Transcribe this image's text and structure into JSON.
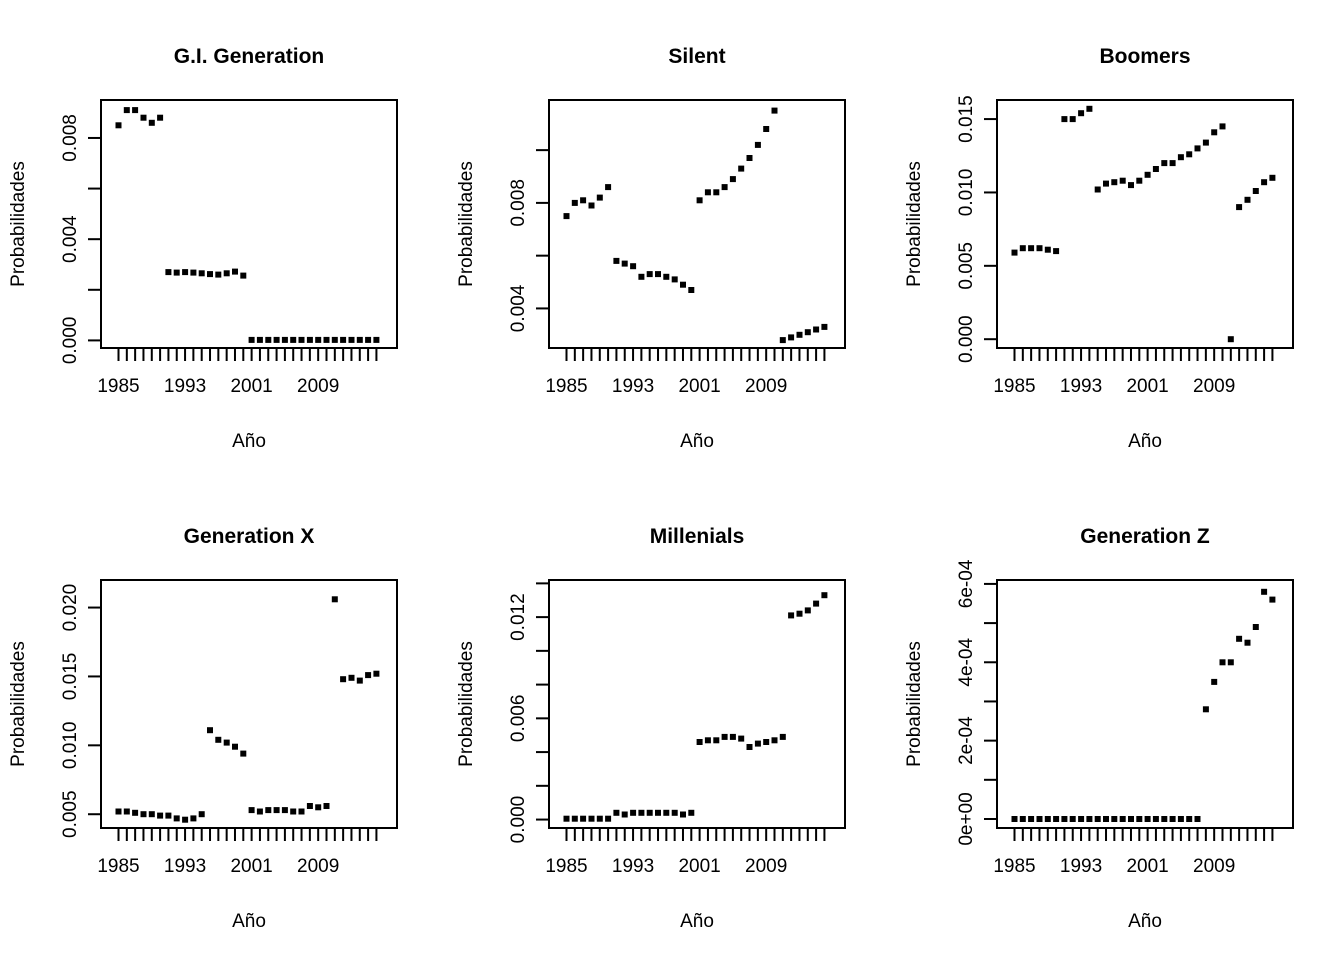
{
  "figure": {
    "description": "2x3 grid of R-style scatter plots of death/event probabilities by year for six generational cohorts",
    "background": "#ffffff",
    "point_color": "#000000",
    "axis_color": "#000000"
  },
  "chart_data": {
    "type": "scatter",
    "grid": "2 rows x 3 columns",
    "point_style": "filled black squares (pch=15)",
    "x": [
      1985,
      1986,
      1987,
      1988,
      1989,
      1990,
      1991,
      1992,
      1993,
      1994,
      1995,
      1996,
      1997,
      1998,
      1999,
      2000,
      2001,
      2002,
      2003,
      2004,
      2005,
      2006,
      2007,
      2008,
      2009,
      2010,
      2011,
      2012,
      2013,
      2014,
      2015,
      2016
    ],
    "xlabel": "Año",
    "ylabel": "Probabilidades",
    "x_tick_labels": [
      "1985",
      "1993",
      "2001",
      "2009"
    ],
    "x_tick_label_indices": [
      0,
      8,
      16,
      24
    ],
    "panels": [
      {
        "title": "G.I. Generation",
        "title_color": "#26B8B0",
        "ylim": [
          -0.0003,
          0.0095
        ],
        "yticks": [
          {
            "v": 0.0,
            "label": "0.000"
          },
          {
            "v": 0.002
          },
          {
            "v": 0.004,
            "label": "0.004"
          },
          {
            "v": 0.006
          },
          {
            "v": 0.008,
            "label": "0.008"
          }
        ],
        "values": [
          0.0085,
          0.0091,
          0.0091,
          0.0088,
          0.0086,
          0.0088,
          0.0027,
          0.00268,
          0.0027,
          0.00268,
          0.00265,
          0.00262,
          0.0026,
          0.00265,
          0.00272,
          0.00256,
          2e-05,
          2e-05,
          2e-05,
          2e-05,
          2e-05,
          2e-05,
          2e-05,
          2e-05,
          2e-05,
          2e-05,
          2e-05,
          2e-05,
          2e-05,
          2e-05,
          2e-05,
          2e-05
        ]
      },
      {
        "title": "Silent",
        "title_color": "#ADFF2F",
        "ylim": [
          0.0025,
          0.0119
        ],
        "yticks": [
          {
            "v": 0.004,
            "label": "0.004"
          },
          {
            "v": 0.006
          },
          {
            "v": 0.008,
            "label": "0.008"
          },
          {
            "v": 0.01
          }
        ],
        "values": [
          0.0075,
          0.008,
          0.0081,
          0.0079,
          0.0082,
          0.0086,
          0.0058,
          0.0057,
          0.0056,
          0.0052,
          0.0053,
          0.0053,
          0.0052,
          0.0051,
          0.0049,
          0.0047,
          0.0081,
          0.0084,
          0.0084,
          0.0086,
          0.0089,
          0.0093,
          0.0097,
          0.0102,
          0.0108,
          0.0115,
          0.0028,
          0.0029,
          0.003,
          0.0031,
          0.0032,
          0.0033
        ]
      },
      {
        "title": "Boomers",
        "title_color": "#B03060",
        "ylim": [
          -0.0006,
          0.0163
        ],
        "yticks": [
          {
            "v": 0.0,
            "label": "0.000"
          },
          {
            "v": 0.005,
            "label": "0.005"
          },
          {
            "v": 0.01,
            "label": "0.010"
          },
          {
            "v": 0.015,
            "label": "0.015"
          }
        ],
        "values": [
          0.0059,
          0.0062,
          0.0062,
          0.0062,
          0.0061,
          0.006,
          0.015,
          0.015,
          0.0154,
          0.0157,
          0.0102,
          0.0106,
          0.0107,
          0.0108,
          0.0105,
          0.0108,
          0.0112,
          0.0116,
          0.012,
          0.012,
          0.0124,
          0.0126,
          0.013,
          0.0134,
          0.0141,
          0.0145,
          0.0,
          0.009,
          0.0095,
          0.0101,
          0.0107,
          0.011
        ]
      },
      {
        "title": "Generation X",
        "title_color": "#F7AABB",
        "ylim": [
          0.004,
          0.022
        ],
        "yticks": [
          {
            "v": 0.005,
            "label": "0.005"
          },
          {
            "v": 0.01,
            "label": "0.010"
          },
          {
            "v": 0.015,
            "label": "0.015"
          },
          {
            "v": 0.02,
            "label": "0.020"
          }
        ],
        "values": [
          0.0052,
          0.0052,
          0.0051,
          0.005,
          0.005,
          0.0049,
          0.0049,
          0.0047,
          0.0046,
          0.0047,
          0.005,
          0.0111,
          0.0104,
          0.0102,
          0.0099,
          0.0094,
          0.0053,
          0.0052,
          0.0053,
          0.0053,
          0.0053,
          0.0052,
          0.0052,
          0.0056,
          0.0055,
          0.0056,
          0.0206,
          0.0148,
          0.0149,
          0.0147,
          0.0151,
          0.0152
        ]
      },
      {
        "title": "Millenials",
        "title_color": "#FF7F50",
        "ylim": [
          -0.0005,
          0.0142
        ],
        "yticks": [
          {
            "v": 0.0,
            "label": "0.000"
          },
          {
            "v": 0.002
          },
          {
            "v": 0.004
          },
          {
            "v": 0.006,
            "label": "0.006"
          },
          {
            "v": 0.008
          },
          {
            "v": 0.01
          },
          {
            "v": 0.012,
            "label": "0.012"
          },
          {
            "v": 0.014
          }
        ],
        "values": [
          5e-05,
          5e-05,
          5e-05,
          5e-05,
          5e-05,
          5e-05,
          0.0004,
          0.0003,
          0.0004,
          0.0004,
          0.0004,
          0.0004,
          0.0004,
          0.0004,
          0.0003,
          0.0004,
          0.0046,
          0.0047,
          0.0047,
          0.0049,
          0.0049,
          0.0048,
          0.0043,
          0.0045,
          0.0046,
          0.0047,
          0.0049,
          0.0121,
          0.0122,
          0.0124,
          0.0128,
          0.0133
        ]
      },
      {
        "title": "Generation Z",
        "title_color": "#F2B1F0",
        "ylim": [
          -2.3e-05,
          0.00061
        ],
        "yticks": [
          {
            "v": 0.0,
            "label": "0e+00"
          },
          {
            "v": 0.0001
          },
          {
            "v": 0.0002,
            "label": "2e-04"
          },
          {
            "v": 0.0003
          },
          {
            "v": 0.0004,
            "label": "4e-04"
          },
          {
            "v": 0.0005
          },
          {
            "v": 0.0006,
            "label": "6e-04"
          }
        ],
        "values": [
          0,
          0,
          0,
          0,
          0,
          0,
          0,
          0,
          0,
          0,
          0,
          0,
          0,
          0,
          0,
          0,
          0,
          0,
          0,
          0,
          0,
          0,
          0,
          0.00028,
          0.00035,
          0.0004,
          0.0004,
          0.00046,
          0.00045,
          0.00049,
          0.00058,
          0.00056
        ]
      }
    ]
  }
}
